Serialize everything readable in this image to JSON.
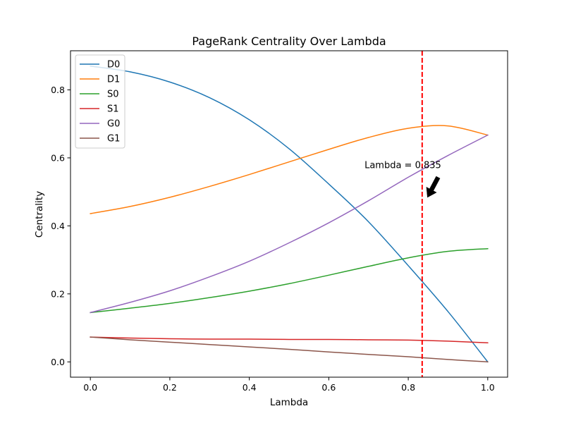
{
  "chart_data": {
    "type": "line",
    "title": "PageRank Centrality Over Lambda",
    "xlabel": "Lambda",
    "ylabel": "Centrality",
    "xlim": [
      -0.05,
      1.05
    ],
    "ylim": [
      -0.045,
      0.915
    ],
    "xticks": [
      0.0,
      0.2,
      0.4,
      0.6,
      0.8,
      1.0
    ],
    "xtick_labels": [
      "0.0",
      "0.2",
      "0.4",
      "0.6",
      "0.8",
      "1.0"
    ],
    "yticks": [
      0.0,
      0.2,
      0.4,
      0.6,
      0.8
    ],
    "ytick_labels": [
      "0.0",
      "0.2",
      "0.4",
      "0.6",
      "0.8"
    ],
    "grid": false,
    "legend_position": "top-left",
    "x": [
      0.0,
      0.1,
      0.2,
      0.3,
      0.4,
      0.5,
      0.6,
      0.7,
      0.8,
      0.9,
      1.0
    ],
    "series": [
      {
        "name": "D0",
        "color": "#1f77b4",
        "values": [
          0.87,
          0.853,
          0.823,
          0.777,
          0.712,
          0.627,
          0.523,
          0.412,
          0.283,
          0.148,
          0.0
        ]
      },
      {
        "name": "D1",
        "color": "#ff7f0e",
        "values": [
          0.436,
          0.457,
          0.484,
          0.516,
          0.551,
          0.588,
          0.625,
          0.66,
          0.687,
          0.694,
          0.667
        ]
      },
      {
        "name": "S0",
        "color": "#2ca02c",
        "values": [
          0.145,
          0.158,
          0.172,
          0.189,
          0.208,
          0.23,
          0.255,
          0.281,
          0.306,
          0.325,
          0.333
        ]
      },
      {
        "name": "S1",
        "color": "#d62728",
        "values": [
          0.073,
          0.07,
          0.068,
          0.067,
          0.067,
          0.066,
          0.066,
          0.065,
          0.064,
          0.061,
          0.056
        ]
      },
      {
        "name": "G0",
        "color": "#9467bd",
        "values": [
          0.145,
          0.175,
          0.209,
          0.25,
          0.296,
          0.35,
          0.409,
          0.474,
          0.543,
          0.607,
          0.667
        ]
      },
      {
        "name": "G1",
        "color": "#8c564b",
        "values": [
          0.073,
          0.065,
          0.058,
          0.051,
          0.044,
          0.037,
          0.029,
          0.022,
          0.015,
          0.007,
          0.0
        ]
      }
    ],
    "vline": {
      "x": 0.835,
      "color": "#ff0000",
      "style": "dashed"
    },
    "annotation": {
      "text": "Lambda = 0.835",
      "x": 0.835,
      "y": 0.58
    }
  }
}
